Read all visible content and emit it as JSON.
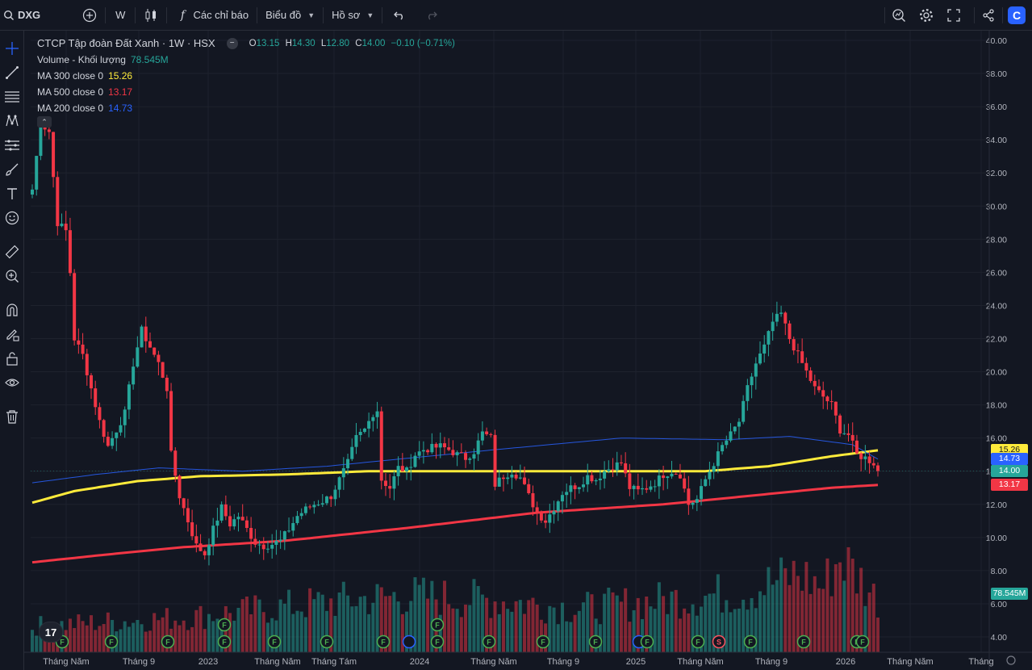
{
  "toolbar": {
    "symbol": "DXG",
    "interval": "W",
    "indicators_label": "Các chỉ báo",
    "chart_label": "Biểu đồ",
    "profile_label": "Hồ sơ"
  },
  "legend": {
    "title": "CTCP Tập đoàn Đất Xanh · 1W · HSX",
    "open_key": "O",
    "open": "13.15",
    "high_key": "H",
    "high": "14.30",
    "low_key": "L",
    "low": "12.80",
    "close_key": "C",
    "close": "14.00",
    "change": "−0.10 (−0.71%)",
    "volume_label": "Volume - Khối lượng",
    "volume_value": "78.545M",
    "ma300_label": "MA 300 close 0",
    "ma300_value": "15.26",
    "ma500_label": "MA 500 close 0",
    "ma500_value": "13.17",
    "ma200_label": "MA 200 close 0",
    "ma200_value": "14.73"
  },
  "price_tags": [
    {
      "value": "15.26",
      "price": 15.26,
      "bg": "#ffeb3b",
      "fg": "#131722"
    },
    {
      "value": "14.73",
      "price": 14.73,
      "bg": "#2962ff",
      "fg": "#ffffff"
    },
    {
      "value": "14.00",
      "price": 14.0,
      "bg": "#26a69a",
      "fg": "#ffffff"
    },
    {
      "value": "13.17",
      "price": 13.17,
      "bg": "#f23645",
      "fg": "#ffffff"
    },
    {
      "value": "78.545M",
      "price": 6.6,
      "bg": "#26a69a",
      "fg": "#ffffff"
    }
  ],
  "colors": {
    "up": "#26a69a",
    "down": "#f23645",
    "ma300": "#ffeb3b",
    "ma500": "#f23645",
    "ma200": "#2962ff",
    "background": "#131722",
    "grid": "#1e222d"
  },
  "chart_data": {
    "type": "candlestick",
    "symbol": "DXG",
    "interval": "1W",
    "price_axis": {
      "min": 4.0,
      "max": 40.0,
      "step": 2.0,
      "scale": "linear"
    },
    "price_ticks": [
      "4.00",
      "6.00",
      "8.00",
      "10.00",
      "12.00",
      "14.00",
      "16.00",
      "18.00",
      "20.00",
      "22.00",
      "24.00",
      "26.00",
      "28.00",
      "30.00",
      "32.00",
      "34.00",
      "36.00",
      "38.00",
      "40.00"
    ],
    "time_labels": [
      "Tháng Năm",
      "Tháng 9",
      "2023",
      "Tháng Năm",
      "Tháng Tám",
      "2024",
      "Tháng Năm",
      "Tháng 9",
      "2025",
      "Tháng Năm",
      "Tháng 9",
      "2026",
      "Tháng Năm",
      "Tháng"
    ],
    "close_path": [
      [
        0,
        31.0
      ],
      [
        2,
        35.0
      ],
      [
        4,
        34.5
      ],
      [
        6,
        29.0
      ],
      [
        8,
        28.5
      ],
      [
        9,
        26.0
      ],
      [
        10,
        22.0
      ],
      [
        12,
        21.0
      ],
      [
        14,
        19.0
      ],
      [
        16,
        17.0
      ],
      [
        18,
        15.5
      ],
      [
        20,
        16.5
      ],
      [
        22,
        17.5
      ],
      [
        24,
        20.5
      ],
      [
        26,
        22.5
      ],
      [
        28,
        21.5
      ],
      [
        30,
        20.5
      ],
      [
        32,
        19.0
      ],
      [
        33,
        15.0
      ],
      [
        35,
        12.5
      ],
      [
        37,
        11.0
      ],
      [
        39,
        9.5
      ],
      [
        41,
        9.0
      ],
      [
        43,
        10.5
      ],
      [
        45,
        11.8
      ],
      [
        47,
        10.8
      ],
      [
        49,
        11.3
      ],
      [
        51,
        10.5
      ],
      [
        53,
        9.7
      ],
      [
        55,
        9.5
      ],
      [
        57,
        9.6
      ],
      [
        59,
        9.8
      ],
      [
        61,
        10.5
      ],
      [
        63,
        11.3
      ],
      [
        65,
        11.7
      ],
      [
        67,
        12.0
      ],
      [
        69,
        12.2
      ],
      [
        71,
        12.5
      ],
      [
        73,
        13.5
      ],
      [
        75,
        14.5
      ],
      [
        77,
        16.0
      ],
      [
        79,
        16.5
      ],
      [
        81,
        17.5
      ],
      [
        82,
        17.7
      ],
      [
        83,
        13.5
      ],
      [
        85,
        13.0
      ],
      [
        87,
        14.2
      ],
      [
        89,
        14.0
      ],
      [
        91,
        15.0
      ],
      [
        93,
        15.3
      ],
      [
        95,
        15.4
      ],
      [
        97,
        15.5
      ],
      [
        99,
        15.3
      ],
      [
        101,
        15.0
      ],
      [
        103,
        14.8
      ],
      [
        105,
        15.2
      ],
      [
        107,
        16.3
      ],
      [
        109,
        16.0
      ],
      [
        110,
        13.2
      ],
      [
        112,
        13.7
      ],
      [
        114,
        14.0
      ],
      [
        116,
        13.6
      ],
      [
        118,
        12.5
      ],
      [
        120,
        11.5
      ],
      [
        122,
        11.0
      ],
      [
        124,
        11.8
      ],
      [
        126,
        12.7
      ],
      [
        128,
        13.0
      ],
      [
        130,
        13.2
      ],
      [
        132,
        13.7
      ],
      [
        134,
        13.5
      ],
      [
        136,
        14.0
      ],
      [
        138,
        14.3
      ],
      [
        140,
        14.5
      ],
      [
        142,
        13.0
      ],
      [
        144,
        12.8
      ],
      [
        146,
        13.0
      ],
      [
        148,
        13.3
      ],
      [
        150,
        13.8
      ],
      [
        152,
        14.0
      ],
      [
        154,
        13.8
      ],
      [
        156,
        12.0
      ],
      [
        158,
        12.3
      ],
      [
        160,
        13.5
      ],
      [
        162,
        14.5
      ],
      [
        164,
        15.5
      ],
      [
        166,
        16.2
      ],
      [
        168,
        17.0
      ],
      [
        170,
        19.0
      ],
      [
        172,
        20.5
      ],
      [
        174,
        21.5
      ],
      [
        176,
        23.0
      ],
      [
        178,
        23.5
      ],
      [
        180,
        22.0
      ],
      [
        182,
        21.0
      ],
      [
        184,
        20.0
      ],
      [
        186,
        19.0
      ],
      [
        188,
        18.5
      ],
      [
        190,
        18.0
      ],
      [
        192,
        16.5
      ],
      [
        194,
        16.2
      ],
      [
        196,
        15.0
      ],
      [
        198,
        14.8
      ],
      [
        200,
        14.5
      ],
      [
        201,
        14.0
      ]
    ],
    "series": [
      {
        "name": "MA 300 close 0",
        "color": "#ffeb3b",
        "points": [
          [
            0,
            12.1
          ],
          [
            10,
            12.8
          ],
          [
            25,
            13.4
          ],
          [
            40,
            13.7
          ],
          [
            60,
            13.8
          ],
          [
            80,
            14.0
          ],
          [
            100,
            14.0
          ],
          [
            130,
            14.0
          ],
          [
            160,
            14.0
          ],
          [
            175,
            14.3
          ],
          [
            190,
            14.9
          ],
          [
            201,
            15.26
          ]
        ]
      },
      {
        "name": "MA 500 close 0",
        "color": "#f23645",
        "points": [
          [
            0,
            8.5
          ],
          [
            15,
            8.9
          ],
          [
            35,
            9.4
          ],
          [
            60,
            9.8
          ],
          [
            90,
            10.6
          ],
          [
            120,
            11.5
          ],
          [
            150,
            12.0
          ],
          [
            170,
            12.5
          ],
          [
            190,
            13.0
          ],
          [
            201,
            13.17
          ]
        ]
      },
      {
        "name": "MA 200 close 0",
        "color": "#2962ff",
        "points": [
          [
            0,
            13.3
          ],
          [
            15,
            13.8
          ],
          [
            30,
            14.2
          ],
          [
            50,
            14.0
          ],
          [
            70,
            14.3
          ],
          [
            90,
            14.8
          ],
          [
            110,
            15.3
          ],
          [
            140,
            16.0
          ],
          [
            165,
            15.9
          ],
          [
            180,
            16.1
          ],
          [
            195,
            15.6
          ],
          [
            201,
            14.73
          ]
        ]
      }
    ],
    "volume_label": "Volume - Khối lượng",
    "volume_last": "78.545M",
    "volume_peaks": [
      [
        0,
        3
      ],
      [
        37,
        4
      ],
      [
        75,
        6
      ],
      [
        90,
        6.5
      ],
      [
        110,
        6
      ],
      [
        130,
        5
      ],
      [
        170,
        7
      ],
      [
        182,
        9
      ],
      [
        188,
        7.5
      ],
      [
        192,
        11
      ],
      [
        201,
        6
      ]
    ]
  }
}
